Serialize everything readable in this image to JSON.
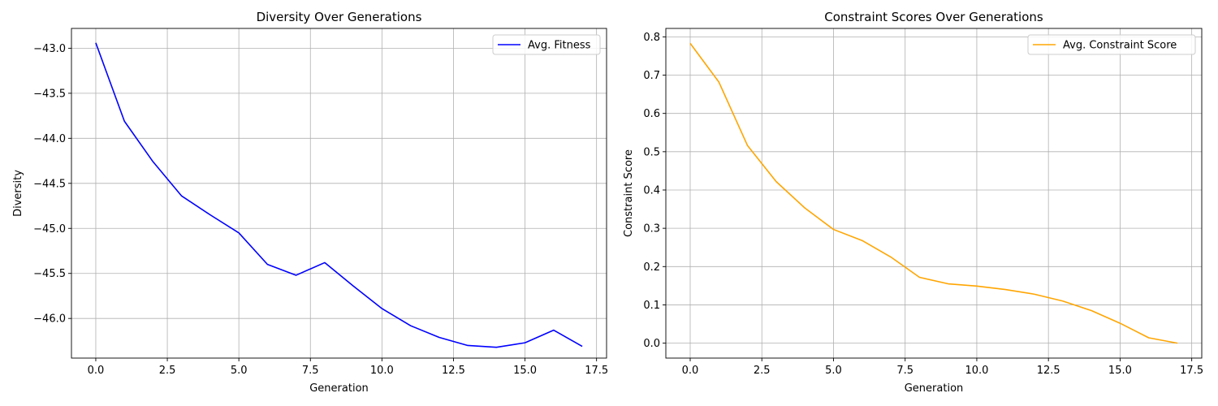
{
  "chart_data": [
    {
      "type": "line",
      "title": "Diversity Over Generations",
      "xlabel": "Generation",
      "ylabel": "Diversity",
      "xlim": [
        -0.85,
        17.85
      ],
      "ylim": [
        -46.44,
        -42.78
      ],
      "xticks": [
        0.0,
        2.5,
        5.0,
        7.5,
        10.0,
        12.5,
        15.0,
        17.5
      ],
      "xtick_labels": [
        "0.0",
        "2.5",
        "5.0",
        "7.5",
        "10.0",
        "12.5",
        "15.0",
        "17.5"
      ],
      "yticks": [
        -43.0,
        -43.5,
        -44.0,
        -44.5,
        -45.0,
        -45.5,
        -46.0
      ],
      "ytick_labels": [
        "−43.0",
        "−43.5",
        "−44.0",
        "−44.5",
        "−45.0",
        "−45.5",
        "−46.0"
      ],
      "grid": true,
      "legend_position": "top-right",
      "series": [
        {
          "name": "Avg. Fitness",
          "color": "#0000ff",
          "x": [
            0,
            1,
            2,
            3,
            4,
            5,
            6,
            7,
            8,
            9,
            10,
            11,
            12,
            13,
            14,
            15,
            16,
            17
          ],
          "y": [
            -42.94,
            -43.81,
            -44.26,
            -44.64,
            -44.85,
            -45.05,
            -45.4,
            -45.52,
            -45.38,
            -45.64,
            -45.89,
            -46.08,
            -46.21,
            -46.3,
            -46.32,
            -46.27,
            -46.13,
            -46.31
          ]
        }
      ]
    },
    {
      "type": "line",
      "title": "Constraint Scores Over Generations",
      "xlabel": "Generation",
      "ylabel": "Constraint Score",
      "xlim": [
        -0.85,
        17.85
      ],
      "ylim": [
        -0.039,
        0.822
      ],
      "xticks": [
        0.0,
        2.5,
        5.0,
        7.5,
        10.0,
        12.5,
        15.0,
        17.5
      ],
      "xtick_labels": [
        "0.0",
        "2.5",
        "5.0",
        "7.5",
        "10.0",
        "12.5",
        "15.0",
        "17.5"
      ],
      "yticks": [
        0.0,
        0.1,
        0.2,
        0.3,
        0.4,
        0.5,
        0.6,
        0.7,
        0.8
      ],
      "ytick_labels": [
        "0.0",
        "0.1",
        "0.2",
        "0.3",
        "0.4",
        "0.5",
        "0.6",
        "0.7",
        "0.8"
      ],
      "grid": true,
      "legend_position": "top-right",
      "series": [
        {
          "name": "Avg. Constraint Score",
          "color": "#ffa500",
          "x": [
            0,
            1,
            2,
            3,
            4,
            5,
            6,
            7,
            8,
            9,
            10,
            11,
            12,
            13,
            14,
            15,
            16,
            17
          ],
          "y": [
            0.783,
            0.682,
            0.516,
            0.422,
            0.353,
            0.297,
            0.268,
            0.225,
            0.172,
            0.155,
            0.149,
            0.14,
            0.128,
            0.11,
            0.085,
            0.052,
            0.014,
            0.0
          ]
        }
      ]
    }
  ]
}
